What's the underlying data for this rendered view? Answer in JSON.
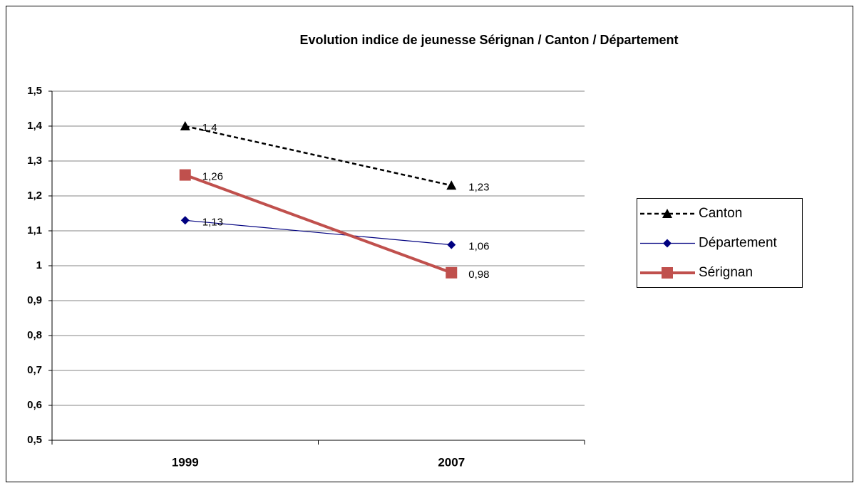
{
  "chart_data": {
    "type": "line",
    "title": "Evolution indice de jeunesse Sérignan / Canton / Département",
    "categories": [
      "1999",
      "2007"
    ],
    "series": [
      {
        "name": "Canton",
        "color": "#000000",
        "dash": true,
        "marker": "triangle",
        "values": [
          1.4,
          1.23
        ],
        "value_labels": [
          "1,4",
          "1,23"
        ]
      },
      {
        "name": "Département",
        "color": "#000080",
        "dash": false,
        "marker": "diamond",
        "values": [
          1.13,
          1.06
        ],
        "value_labels": [
          "1,13",
          "1,06"
        ]
      },
      {
        "name": "Sérignan",
        "color": "#c0504d",
        "dash": false,
        "marker": "square",
        "values": [
          1.26,
          0.98
        ],
        "value_labels": [
          "1,26",
          "0,98"
        ]
      }
    ],
    "ylim": [
      0.5,
      1.5
    ],
    "yticks": [
      {
        "value": 0.5,
        "label": "0,5"
      },
      {
        "value": 0.6,
        "label": "0,6"
      },
      {
        "value": 0.7,
        "label": "0,7"
      },
      {
        "value": 0.8,
        "label": "0,8"
      },
      {
        "value": 0.9,
        "label": "0,9"
      },
      1,
      {
        "value": 1.1,
        "label": "1,1"
      },
      {
        "value": 1.2,
        "label": "1,2"
      },
      {
        "value": 1.3,
        "label": "1,3"
      },
      {
        "value": 1.4,
        "label": "1,4"
      },
      {
        "value": 1.5,
        "label": "1,5"
      }
    ],
    "grid": true,
    "legend": "right"
  }
}
